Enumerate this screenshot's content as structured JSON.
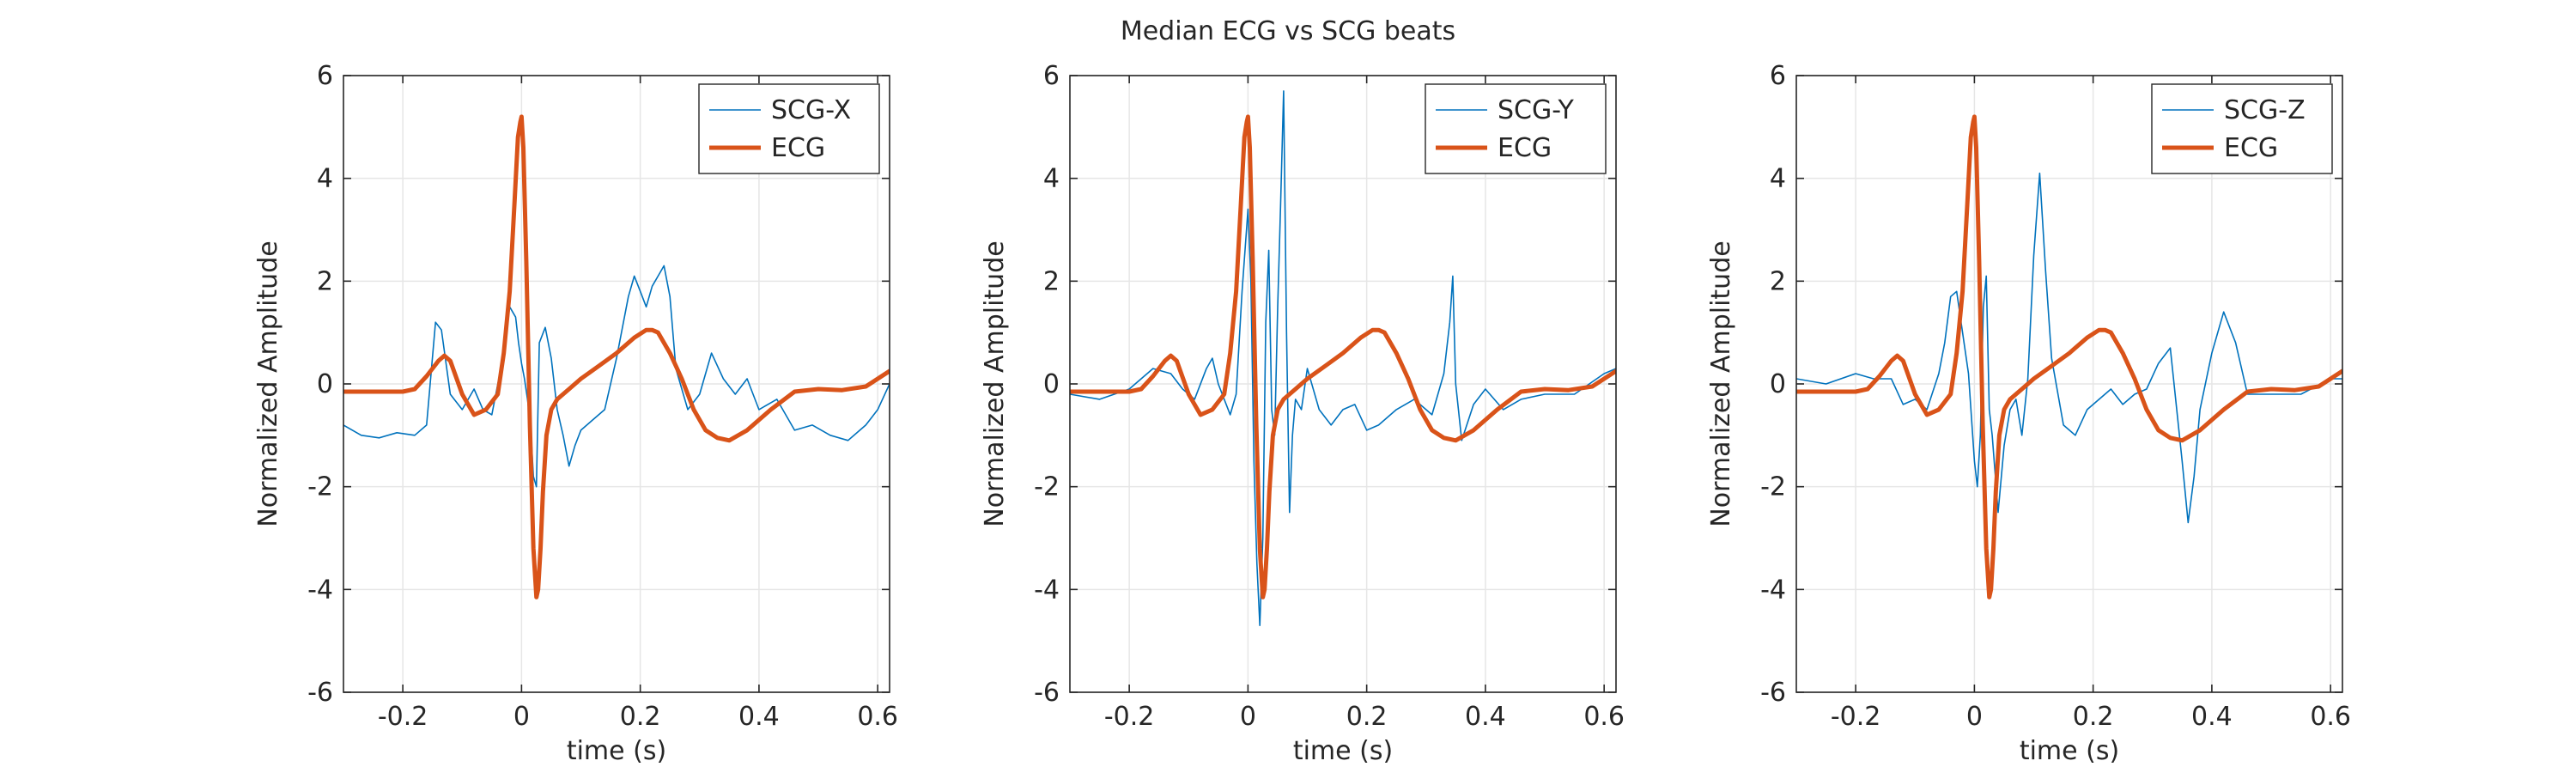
{
  "figure_title": "Median ECG vs SCG beats",
  "chart_data": [
    {
      "type": "line",
      "xlabel": "time (s)",
      "ylabel": "Normalized Amplitude",
      "xlim": [
        -0.3,
        0.62
      ],
      "ylim": [
        -6,
        6
      ],
      "xticks": [
        -0.2,
        0,
        0.2,
        0.4,
        0.6
      ],
      "xtick_labels": [
        "-0.2",
        "0",
        "0.2",
        "0.4",
        "0.6"
      ],
      "yticks": [
        -6,
        -4,
        -2,
        0,
        2,
        4,
        6
      ],
      "ytick_labels": [
        "-6",
        "-4",
        "-2",
        "0",
        "2",
        "4",
        "6"
      ],
      "grid": true,
      "legend_position": "top-right",
      "series": [
        {
          "name": "SCG-X",
          "color": "#0072BD",
          "style": "thin",
          "x": [
            -0.3,
            -0.27,
            -0.24,
            -0.21,
            -0.18,
            -0.16,
            -0.145,
            -0.135,
            -0.12,
            -0.1,
            -0.08,
            -0.065,
            -0.05,
            -0.035,
            -0.02,
            -0.01,
            -0.005,
            0.0,
            0.005,
            0.01,
            0.015,
            0.02,
            0.025,
            0.03,
            0.04,
            0.05,
            0.06,
            0.07,
            0.08,
            0.09,
            0.1,
            0.12,
            0.14,
            0.16,
            0.18,
            0.19,
            0.2,
            0.21,
            0.22,
            0.23,
            0.24,
            0.25,
            0.26,
            0.28,
            0.3,
            0.32,
            0.34,
            0.36,
            0.38,
            0.4,
            0.43,
            0.46,
            0.49,
            0.52,
            0.55,
            0.58,
            0.6,
            0.62
          ],
          "y": [
            -0.8,
            -1.0,
            -1.05,
            -0.95,
            -1.0,
            -0.8,
            1.2,
            1.05,
            -0.2,
            -0.5,
            -0.1,
            -0.5,
            -0.6,
            0.3,
            1.5,
            1.3,
            0.8,
            0.4,
            0.1,
            -0.3,
            -0.8,
            -1.8,
            -2.0,
            0.8,
            1.1,
            0.5,
            -0.5,
            -1.0,
            -1.6,
            -1.2,
            -0.9,
            -0.7,
            -0.5,
            0.5,
            1.7,
            2.1,
            1.8,
            1.5,
            1.9,
            2.1,
            2.3,
            1.7,
            0.3,
            -0.5,
            -0.2,
            0.6,
            0.1,
            -0.2,
            0.1,
            -0.5,
            -0.3,
            -0.9,
            -0.8,
            -1.0,
            -1.1,
            -0.8,
            -0.5,
            0.0
          ]
        },
        {
          "name": "ECG",
          "color": "#D95319",
          "style": "thick",
          "x": [
            -0.3,
            -0.25,
            -0.2,
            -0.18,
            -0.16,
            -0.14,
            -0.13,
            -0.12,
            -0.1,
            -0.08,
            -0.06,
            -0.04,
            -0.03,
            -0.02,
            -0.012,
            -0.006,
            -0.002,
            0.0,
            0.003,
            0.008,
            0.014,
            0.02,
            0.025,
            0.028,
            0.032,
            0.036,
            0.042,
            0.05,
            0.06,
            0.08,
            0.1,
            0.13,
            0.16,
            0.19,
            0.21,
            0.22,
            0.23,
            0.25,
            0.27,
            0.29,
            0.31,
            0.33,
            0.35,
            0.38,
            0.42,
            0.46,
            0.5,
            0.54,
            0.58,
            0.62
          ],
          "y": [
            -0.15,
            -0.15,
            -0.15,
            -0.1,
            0.15,
            0.45,
            0.55,
            0.45,
            -0.2,
            -0.6,
            -0.5,
            -0.2,
            0.6,
            1.8,
            3.5,
            4.8,
            5.1,
            5.2,
            4.6,
            2.4,
            -0.8,
            -3.2,
            -4.15,
            -4.0,
            -3.2,
            -2.1,
            -1.0,
            -0.5,
            -0.3,
            -0.1,
            0.1,
            0.35,
            0.6,
            0.9,
            1.05,
            1.05,
            1.0,
            0.6,
            0.1,
            -0.5,
            -0.9,
            -1.05,
            -1.1,
            -0.9,
            -0.5,
            -0.15,
            -0.1,
            -0.12,
            -0.05,
            0.25
          ]
        }
      ]
    },
    {
      "type": "line",
      "xlabel": "time (s)",
      "ylabel": "Normalized Amplitude",
      "xlim": [
        -0.3,
        0.62
      ],
      "ylim": [
        -6,
        6
      ],
      "xticks": [
        -0.2,
        0,
        0.2,
        0.4,
        0.6
      ],
      "xtick_labels": [
        "-0.2",
        "0",
        "0.2",
        "0.4",
        "0.6"
      ],
      "yticks": [
        -6,
        -4,
        -2,
        0,
        2,
        4,
        6
      ],
      "ytick_labels": [
        "-6",
        "-4",
        "-2",
        "0",
        "2",
        "4",
        "6"
      ],
      "grid": true,
      "legend_position": "top-right",
      "series": [
        {
          "name": "SCG-Y",
          "color": "#0072BD",
          "style": "thin",
          "x": [
            -0.3,
            -0.25,
            -0.2,
            -0.16,
            -0.13,
            -0.11,
            -0.09,
            -0.07,
            -0.06,
            -0.05,
            -0.03,
            -0.02,
            -0.01,
            0.0,
            0.005,
            0.01,
            0.015,
            0.02,
            0.025,
            0.03,
            0.035,
            0.04,
            0.045,
            0.05,
            0.055,
            0.06,
            0.065,
            0.07,
            0.075,
            0.08,
            0.09,
            0.1,
            0.12,
            0.14,
            0.16,
            0.18,
            0.2,
            0.22,
            0.25,
            0.28,
            0.31,
            0.33,
            0.34,
            0.345,
            0.35,
            0.36,
            0.38,
            0.4,
            0.43,
            0.46,
            0.5,
            0.55,
            0.6,
            0.62
          ],
          "y": [
            -0.2,
            -0.3,
            -0.1,
            0.3,
            0.2,
            -0.1,
            -0.3,
            0.3,
            0.5,
            0.0,
            -0.6,
            -0.2,
            1.8,
            3.4,
            2.0,
            -1.5,
            -3.5,
            -4.7,
            -3.0,
            1.2,
            2.6,
            -0.5,
            -1.0,
            1.5,
            3.5,
            5.7,
            1.0,
            -2.5,
            -1.0,
            -0.3,
            -0.5,
            0.3,
            -0.5,
            -0.8,
            -0.5,
            -0.4,
            -0.9,
            -0.8,
            -0.5,
            -0.3,
            -0.6,
            0.2,
            1.2,
            2.1,
            0.0,
            -1.1,
            -0.4,
            -0.1,
            -0.5,
            -0.3,
            -0.2,
            -0.2,
            0.2,
            0.3
          ]
        },
        {
          "name": "ECG",
          "color": "#D95319",
          "style": "thick",
          "x": [
            -0.3,
            -0.25,
            -0.2,
            -0.18,
            -0.16,
            -0.14,
            -0.13,
            -0.12,
            -0.1,
            -0.08,
            -0.06,
            -0.04,
            -0.03,
            -0.02,
            -0.012,
            -0.006,
            -0.002,
            0.0,
            0.003,
            0.008,
            0.014,
            0.02,
            0.025,
            0.028,
            0.032,
            0.036,
            0.042,
            0.05,
            0.06,
            0.08,
            0.1,
            0.13,
            0.16,
            0.19,
            0.21,
            0.22,
            0.23,
            0.25,
            0.27,
            0.29,
            0.31,
            0.33,
            0.35,
            0.38,
            0.42,
            0.46,
            0.5,
            0.54,
            0.58,
            0.62
          ],
          "y": [
            -0.15,
            -0.15,
            -0.15,
            -0.1,
            0.15,
            0.45,
            0.55,
            0.45,
            -0.2,
            -0.6,
            -0.5,
            -0.2,
            0.6,
            1.8,
            3.5,
            4.8,
            5.1,
            5.2,
            4.6,
            2.4,
            -0.8,
            -3.2,
            -4.15,
            -4.0,
            -3.2,
            -2.1,
            -1.0,
            -0.5,
            -0.3,
            -0.1,
            0.1,
            0.35,
            0.6,
            0.9,
            1.05,
            1.05,
            1.0,
            0.6,
            0.1,
            -0.5,
            -0.9,
            -1.05,
            -1.1,
            -0.9,
            -0.5,
            -0.15,
            -0.1,
            -0.12,
            -0.05,
            0.25
          ]
        }
      ]
    },
    {
      "type": "line",
      "xlabel": "time (s)",
      "ylabel": "Normalized Amplitude",
      "xlim": [
        -0.3,
        0.62
      ],
      "ylim": [
        -6,
        6
      ],
      "xticks": [
        -0.2,
        0,
        0.2,
        0.4,
        0.6
      ],
      "xtick_labels": [
        "-0.2",
        "0",
        "0.2",
        "0.4",
        "0.6"
      ],
      "yticks": [
        -6,
        -4,
        -2,
        0,
        2,
        4,
        6
      ],
      "ytick_labels": [
        "-6",
        "-4",
        "-2",
        "0",
        "2",
        "4",
        "6"
      ],
      "grid": true,
      "legend_position": "top-right",
      "series": [
        {
          "name": "SCG-Z",
          "color": "#0072BD",
          "style": "thin",
          "x": [
            -0.3,
            -0.25,
            -0.2,
            -0.17,
            -0.14,
            -0.12,
            -0.1,
            -0.08,
            -0.06,
            -0.05,
            -0.04,
            -0.03,
            -0.02,
            -0.01,
            0.0,
            0.005,
            0.01,
            0.015,
            0.02,
            0.025,
            0.03,
            0.04,
            0.05,
            0.06,
            0.07,
            0.08,
            0.09,
            0.1,
            0.11,
            0.12,
            0.13,
            0.15,
            0.17,
            0.19,
            0.21,
            0.23,
            0.25,
            0.27,
            0.29,
            0.31,
            0.33,
            0.35,
            0.36,
            0.37,
            0.38,
            0.4,
            0.42,
            0.44,
            0.46,
            0.5,
            0.55,
            0.6,
            0.62
          ],
          "y": [
            0.1,
            0.0,
            0.2,
            0.1,
            0.1,
            -0.4,
            -0.3,
            -0.5,
            0.2,
            0.8,
            1.7,
            1.8,
            1.0,
            0.2,
            -1.5,
            -2.0,
            -1.0,
            1.5,
            2.1,
            -0.5,
            -1.0,
            -2.5,
            -1.2,
            -0.5,
            -0.3,
            -1.0,
            0.1,
            2.5,
            4.1,
            2.2,
            0.5,
            -0.8,
            -1.0,
            -0.5,
            -0.3,
            -0.1,
            -0.4,
            -0.2,
            -0.1,
            0.4,
            0.7,
            -1.5,
            -2.7,
            -1.8,
            -0.5,
            0.6,
            1.4,
            0.8,
            -0.2,
            -0.2,
            -0.2,
            0.1,
            0.1
          ]
        },
        {
          "name": "ECG",
          "color": "#D95319",
          "style": "thick",
          "x": [
            -0.3,
            -0.25,
            -0.2,
            -0.18,
            -0.16,
            -0.14,
            -0.13,
            -0.12,
            -0.1,
            -0.08,
            -0.06,
            -0.04,
            -0.03,
            -0.02,
            -0.012,
            -0.006,
            -0.002,
            0.0,
            0.003,
            0.008,
            0.014,
            0.02,
            0.025,
            0.028,
            0.032,
            0.036,
            0.042,
            0.05,
            0.06,
            0.08,
            0.1,
            0.13,
            0.16,
            0.19,
            0.21,
            0.22,
            0.23,
            0.25,
            0.27,
            0.29,
            0.31,
            0.33,
            0.35,
            0.38,
            0.42,
            0.46,
            0.5,
            0.54,
            0.58,
            0.62
          ],
          "y": [
            -0.15,
            -0.15,
            -0.15,
            -0.1,
            0.15,
            0.45,
            0.55,
            0.45,
            -0.2,
            -0.6,
            -0.5,
            -0.2,
            0.6,
            1.8,
            3.5,
            4.8,
            5.1,
            5.2,
            4.6,
            2.4,
            -0.8,
            -3.2,
            -4.15,
            -4.0,
            -3.2,
            -2.1,
            -1.0,
            -0.5,
            -0.3,
            -0.1,
            0.1,
            0.35,
            0.6,
            0.9,
            1.05,
            1.05,
            1.0,
            0.6,
            0.1,
            -0.5,
            -0.9,
            -1.05,
            -1.1,
            -0.9,
            -0.5,
            -0.15,
            -0.1,
            -0.12,
            -0.05,
            0.25
          ]
        }
      ]
    }
  ]
}
